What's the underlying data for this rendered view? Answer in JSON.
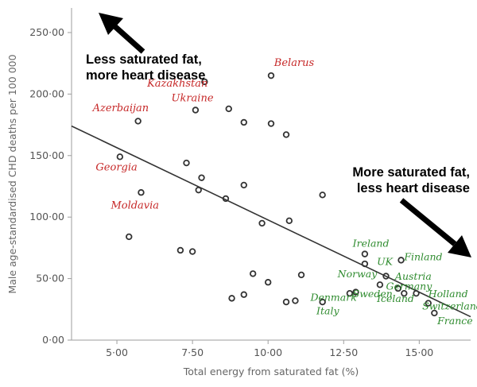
{
  "chart_data": {
    "type": "scatter",
    "title": "",
    "xlabel": "Total energy from saturated fat (%)",
    "ylabel": "Male age-standardised CHD deaths per 100 000",
    "xlim": [
      3.5,
      16.7
    ],
    "ylim": [
      0,
      270
    ],
    "x_ticks": [
      "5·00",
      "7·50",
      "10·00",
      "12·50",
      "15·00"
    ],
    "x_tick_values": [
      5,
      7.5,
      10,
      12.5,
      15
    ],
    "y_ticks": [
      "0·00",
      "50·00",
      "100·00",
      "150·00",
      "200·00",
      "250·00"
    ],
    "y_tick_values": [
      0,
      50,
      100,
      150,
      200,
      250
    ],
    "points": [
      {
        "x": 10.1,
        "y": 215
      },
      {
        "x": 7.9,
        "y": 210
      },
      {
        "x": 8.7,
        "y": 188
      },
      {
        "x": 7.6,
        "y": 187
      },
      {
        "x": 5.7,
        "y": 178
      },
      {
        "x": 9.2,
        "y": 177
      },
      {
        "x": 10.1,
        "y": 176
      },
      {
        "x": 10.6,
        "y": 167
      },
      {
        "x": 5.1,
        "y": 149
      },
      {
        "x": 7.3,
        "y": 144
      },
      {
        "x": 7.8,
        "y": 132
      },
      {
        "x": 9.2,
        "y": 126
      },
      {
        "x": 7.7,
        "y": 122
      },
      {
        "x": 5.8,
        "y": 120
      },
      {
        "x": 11.8,
        "y": 118
      },
      {
        "x": 8.6,
        "y": 115
      },
      {
        "x": 10.7,
        "y": 97
      },
      {
        "x": 9.8,
        "y": 95
      },
      {
        "x": 5.4,
        "y": 84
      },
      {
        "x": 7.1,
        "y": 73
      },
      {
        "x": 7.5,
        "y": 72
      },
      {
        "x": 13.2,
        "y": 70
      },
      {
        "x": 14.4,
        "y": 65
      },
      {
        "x": 13.2,
        "y": 62
      },
      {
        "x": 9.5,
        "y": 54
      },
      {
        "x": 11.1,
        "y": 53
      },
      {
        "x": 13.9,
        "y": 52
      },
      {
        "x": 10.0,
        "y": 47
      },
      {
        "x": 13.7,
        "y": 45
      },
      {
        "x": 14.3,
        "y": 42
      },
      {
        "x": 14.9,
        "y": 38
      },
      {
        "x": 14.5,
        "y": 38
      },
      {
        "x": 12.7,
        "y": 38
      },
      {
        "x": 12.9,
        "y": 39
      },
      {
        "x": 9.2,
        "y": 37
      },
      {
        "x": 8.8,
        "y": 34
      },
      {
        "x": 10.6,
        "y": 31
      },
      {
        "x": 10.9,
        "y": 32
      },
      {
        "x": 11.8,
        "y": 31
      },
      {
        "x": 15.3,
        "y": 30
      },
      {
        "x": 15.5,
        "y": 22
      }
    ],
    "trendline": {
      "x": [
        3.5,
        16.7
      ],
      "y": [
        174,
        19
      ]
    },
    "country_labels_red": [
      {
        "text": "Belarus",
        "x": 10.2,
        "y": 223
      },
      {
        "text": "Kazakhstan",
        "x": 6.0,
        "y": 206
      },
      {
        "text": "Ukraine",
        "x": 6.8,
        "y": 194
      },
      {
        "text": "Azerbaijan",
        "x": 4.2,
        "y": 186
      },
      {
        "text": "Georgia",
        "x": 4.3,
        "y": 138
      },
      {
        "text": "Moldavia",
        "x": 4.8,
        "y": 107
      }
    ],
    "country_labels_green": [
      {
        "text": "Ireland",
        "x": 12.8,
        "y": 76
      },
      {
        "text": "Finland",
        "x": 14.5,
        "y": 65
      },
      {
        "text": "UK",
        "x": 13.6,
        "y": 61
      },
      {
        "text": "Norway",
        "x": 12.3,
        "y": 51
      },
      {
        "text": "Austria",
        "x": 14.2,
        "y": 49
      },
      {
        "text": "Germany",
        "x": 13.9,
        "y": 41
      },
      {
        "text": "Sweden",
        "x": 12.8,
        "y": 35
      },
      {
        "text": "Holland",
        "x": 15.3,
        "y": 35
      },
      {
        "text": "Denmark",
        "x": 11.4,
        "y": 32
      },
      {
        "text": "Iceland",
        "x": 13.6,
        "y": 31
      },
      {
        "text": "Switzerland",
        "x": 15.1,
        "y": 25
      },
      {
        "text": "Italy",
        "x": 11.6,
        "y": 21
      },
      {
        "text": "France",
        "x": 15.6,
        "y": 13
      }
    ]
  },
  "annotations": {
    "top_left": [
      "Less saturated fat,",
      "more heart disease"
    ],
    "right": [
      "More saturated fat,",
      "less heart disease"
    ]
  }
}
